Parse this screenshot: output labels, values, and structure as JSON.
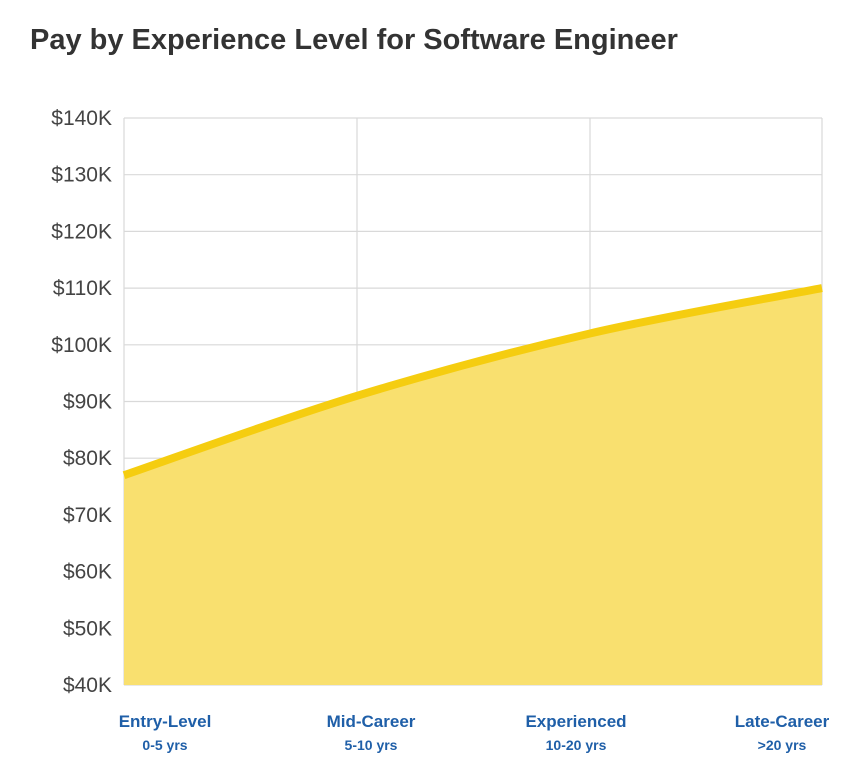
{
  "title": "Pay by Experience Level for Software Engineer",
  "colors": {
    "line": "#f5cd10",
    "area": "#f9e06f",
    "grid": "#d9d9d9",
    "category_text": "#1f5fa8"
  },
  "chart_data": {
    "type": "area",
    "title": "Pay by Experience Level for Software Engineer",
    "categories": [
      "Entry-Level",
      "Mid-Career",
      "Experienced",
      "Late-Career"
    ],
    "category_sublabels": [
      "0-5 yrs",
      "5-10 yrs",
      "10-20 yrs",
      ">20 yrs"
    ],
    "values": [
      77000,
      91000,
      102000,
      110000
    ],
    "ylim": [
      40000,
      140000
    ],
    "yticks": [
      140000,
      130000,
      120000,
      110000,
      100000,
      90000,
      80000,
      70000,
      60000,
      50000,
      40000
    ],
    "ytick_labels": [
      "$140K",
      "$130K",
      "$120K",
      "$110K",
      "$100K",
      "$90K",
      "$80K",
      "$70K",
      "$60K",
      "$50K",
      "$40K"
    ],
    "grid": true,
    "xlabel": "",
    "ylabel": ""
  }
}
